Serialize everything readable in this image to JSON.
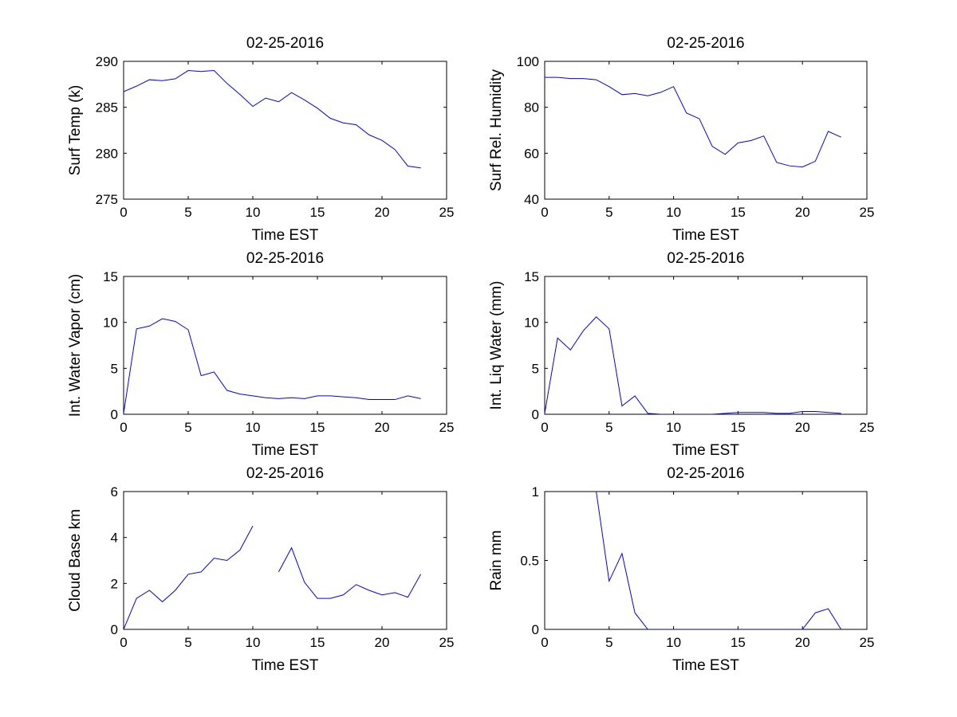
{
  "figure": {
    "background": "#ffffff",
    "line_color": "#0000ff"
  },
  "chart_data": [
    {
      "type": "line",
      "title": "02-25-2016",
      "xlabel": "Time EST",
      "ylabel": "Surf Temp (k)",
      "xlim": [
        0,
        25
      ],
      "ylim": [
        275,
        290
      ],
      "xticks": [
        0,
        5,
        10,
        15,
        20,
        25
      ],
      "yticks": [
        275,
        280,
        285,
        290
      ],
      "x": [
        0,
        1,
        2,
        3,
        4,
        5,
        6,
        7,
        8,
        9,
        10,
        11,
        12,
        13,
        14,
        15,
        16,
        17,
        18,
        19,
        20,
        21,
        22,
        23
      ],
      "y": [
        286.7,
        287.3,
        288.0,
        287.9,
        288.1,
        289.0,
        288.9,
        289.0,
        287.6,
        286.4,
        285.1,
        286.0,
        285.6,
        286.6,
        285.8,
        284.9,
        283.8,
        283.3,
        283.1,
        282.0,
        281.4,
        280.4,
        278.6,
        278.4
      ]
    },
    {
      "type": "line",
      "title": "02-25-2016",
      "xlabel": "Time EST",
      "ylabel": "Surf Rel. Humidity",
      "xlim": [
        0,
        25
      ],
      "ylim": [
        40,
        100
      ],
      "xticks": [
        0,
        5,
        10,
        15,
        20,
        25
      ],
      "yticks": [
        40,
        60,
        80,
        100
      ],
      "x": [
        0,
        1,
        2,
        3,
        4,
        5,
        6,
        7,
        8,
        9,
        10,
        11,
        12,
        13,
        14,
        15,
        16,
        17,
        18,
        19,
        20,
        21,
        22,
        23
      ],
      "y": [
        93,
        93,
        92.5,
        92.5,
        92,
        89,
        85.5,
        86,
        85,
        86.5,
        89,
        77.5,
        75,
        63,
        59.5,
        64.5,
        65.5,
        67.5,
        56,
        54.5,
        54,
        56.5,
        69.5,
        67
      ]
    },
    {
      "type": "line",
      "title": "02-25-2016",
      "xlabel": "Time EST",
      "ylabel": "Int. Water Vapor (cm)",
      "xlim": [
        0,
        25
      ],
      "ylim": [
        0,
        15
      ],
      "xticks": [
        0,
        5,
        10,
        15,
        20,
        25
      ],
      "yticks": [
        0,
        5,
        10,
        15
      ],
      "x": [
        0,
        1,
        2,
        3,
        4,
        5,
        6,
        7,
        8,
        9,
        10,
        11,
        12,
        13,
        14,
        15,
        16,
        17,
        18,
        19,
        20,
        21,
        22,
        23
      ],
      "y": [
        0.1,
        9.3,
        9.6,
        10.4,
        10.1,
        9.2,
        4.2,
        4.6,
        2.6,
        2.2,
        2.0,
        1.8,
        1.7,
        1.8,
        1.7,
        2.0,
        2.0,
        1.9,
        1.8,
        1.6,
        1.6,
        1.6,
        2.0,
        1.7
      ]
    },
    {
      "type": "line",
      "title": "02-25-2016",
      "xlabel": "Time EST",
      "ylabel": "Int. Liq Water (mm)",
      "xlim": [
        0,
        25
      ],
      "ylim": [
        0,
        15
      ],
      "xticks": [
        0,
        5,
        10,
        15,
        20,
        25
      ],
      "yticks": [
        0,
        5,
        10,
        15
      ],
      "x": [
        0,
        1,
        2,
        3,
        4,
        5,
        6,
        7,
        8,
        9,
        10,
        11,
        12,
        13,
        14,
        15,
        16,
        17,
        18,
        19,
        20,
        21,
        22,
        23
      ],
      "y": [
        0.1,
        8.3,
        7.0,
        9.1,
        10.6,
        9.3,
        0.9,
        2.0,
        0.1,
        0,
        0,
        0,
        0,
        0,
        0.1,
        0.2,
        0.2,
        0.2,
        0.1,
        0.1,
        0.3,
        0.3,
        0.2,
        0.1
      ]
    },
    {
      "type": "line",
      "title": "02-25-2016",
      "xlabel": "Time EST",
      "ylabel": "Cloud Base km",
      "xlim": [
        0,
        25
      ],
      "ylim": [
        0,
        6
      ],
      "xticks": [
        0,
        5,
        10,
        15,
        20,
        25
      ],
      "yticks": [
        0,
        2,
        4,
        6
      ],
      "x": [
        0,
        1,
        2,
        3,
        4,
        5,
        6,
        7,
        8,
        9,
        10,
        11,
        12,
        13,
        14,
        15,
        16,
        17,
        18,
        19,
        20,
        21,
        22,
        23
      ],
      "y": [
        0,
        1.35,
        1.7,
        1.2,
        1.7,
        2.4,
        2.5,
        3.1,
        3.0,
        3.45,
        4.5,
        null,
        2.5,
        3.55,
        2.05,
        1.35,
        1.35,
        1.5,
        1.95,
        1.7,
        1.5,
        1.6,
        1.4,
        2.4
      ]
    },
    {
      "type": "line",
      "title": "02-25-2016",
      "xlabel": "Time EST",
      "ylabel": "Rain mm",
      "xlim": [
        0,
        25
      ],
      "ylim": [
        0,
        1
      ],
      "xticks": [
        0,
        5,
        10,
        15,
        20,
        25
      ],
      "yticks": [
        0,
        0.5,
        1
      ],
      "x": [
        0,
        1,
        2,
        3,
        4,
        5,
        6,
        7,
        8,
        9,
        10,
        11,
        12,
        13,
        14,
        15,
        16,
        17,
        18,
        19,
        20,
        21,
        22,
        23
      ],
      "y": [
        null,
        null,
        null,
        null,
        1.0,
        0.35,
        0.55,
        0.12,
        0,
        0,
        0,
        0,
        0,
        0,
        0,
        0,
        0,
        0,
        0,
        0,
        0,
        0.12,
        0.15,
        0
      ]
    }
  ]
}
